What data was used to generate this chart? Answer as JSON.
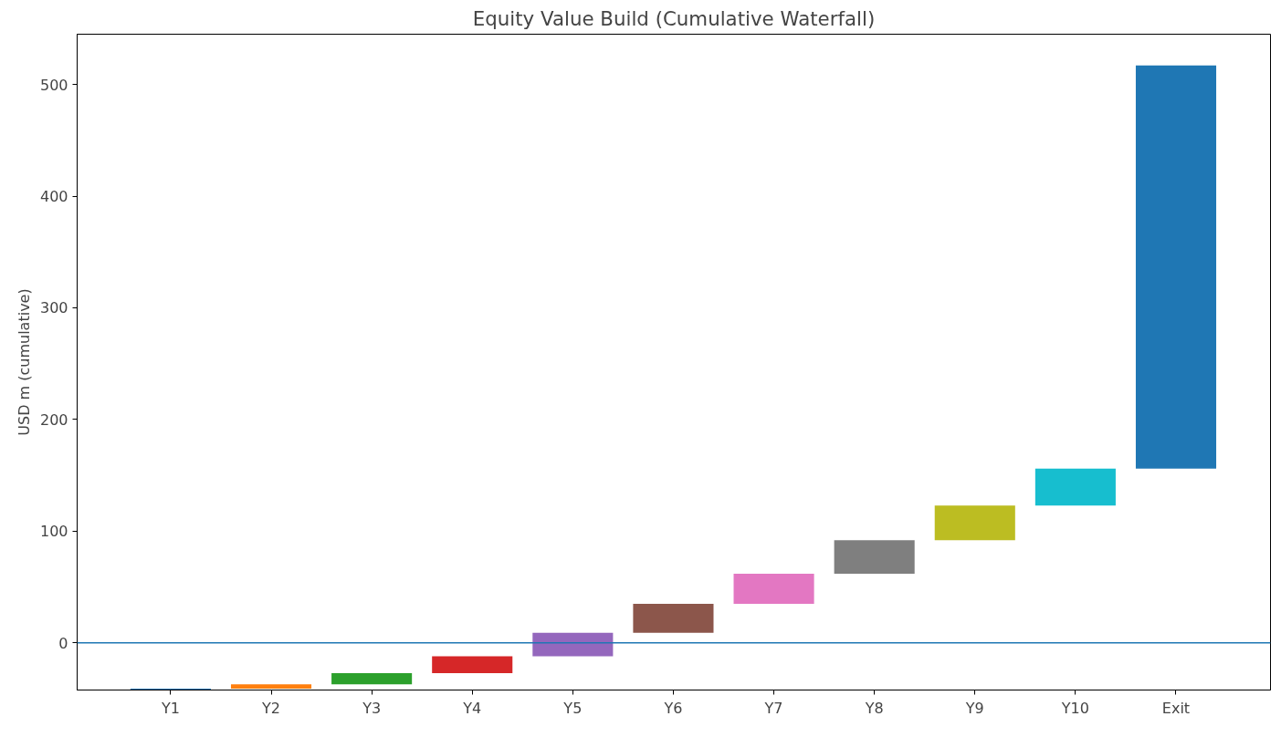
{
  "chart_data": {
    "type": "bar",
    "title": "Equity Value Build (Cumulative Waterfall)",
    "ylabel": "USD m (cumulative)",
    "categories": [
      "Y1",
      "Y2",
      "Y3",
      "Y4",
      "Y5",
      "Y6",
      "Y7",
      "Y8",
      "Y9",
      "Y10",
      "Exit"
    ],
    "base": [
      -42,
      -41,
      -37,
      -27,
      -12,
      9,
      35,
      62,
      92,
      123,
      156
    ],
    "values": [
      1,
      4,
      10,
      15,
      21,
      26,
      27,
      30,
      31,
      33,
      361
    ],
    "colors": [
      "#1f77b4",
      "#ff7f0e",
      "#2ca02c",
      "#d62728",
      "#9467bd",
      "#8c564b",
      "#e377c2",
      "#7f7f7f",
      "#bcbd22",
      "#17becf",
      "#1f77b4"
    ],
    "ylim": [
      -42.2,
      545
    ],
    "yticks": [
      0,
      100,
      200,
      300,
      400,
      500
    ],
    "ref_lines": [
      {
        "axis": "y",
        "value": 0,
        "color": "#1f77b4"
      }
    ],
    "grid": false
  }
}
